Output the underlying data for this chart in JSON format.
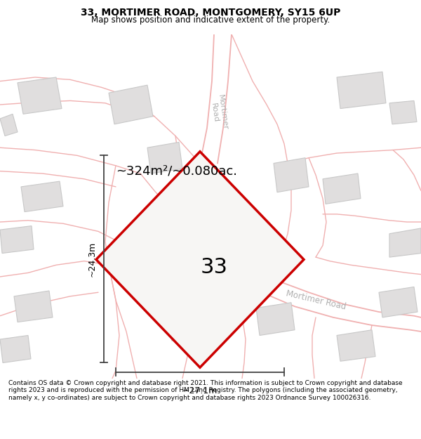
{
  "title": "33, MORTIMER ROAD, MONTGOMERY, SY15 6UP",
  "subtitle": "Map shows position and indicative extent of the property.",
  "map_bg": "#f7f6f4",
  "plot_label": "33",
  "area_text": "~324m²/~0.080ac.",
  "width_text": "~27.1m",
  "height_text": "~24.3m",
  "footer": "Contains OS data © Crown copyright and database right 2021. This information is subject to Crown copyright and database rights 2023 and is reproduced with the permission of HM Land Registry. The polygons (including the associated geometry, namely x, y co-ordinates) are subject to Crown copyright and database rights 2023 Ordnance Survey 100026316.",
  "plot_color": "#cc0000",
  "road_outline_color": "#f0b0b0",
  "road_fill_color": "#ede8e0",
  "road_label_color": "#b0b0b0",
  "building_face_color": "#e0dede",
  "building_edge_color": "#c8c8c8",
  "dim_color": "#444444",
  "title_fontsize": 10,
  "subtitle_fontsize": 8.5,
  "area_fontsize": 13,
  "label_fontsize": 9,
  "plot_num_fontsize": 22,
  "road_label_fontsize": 8,
  "footer_fontsize": 6.5
}
